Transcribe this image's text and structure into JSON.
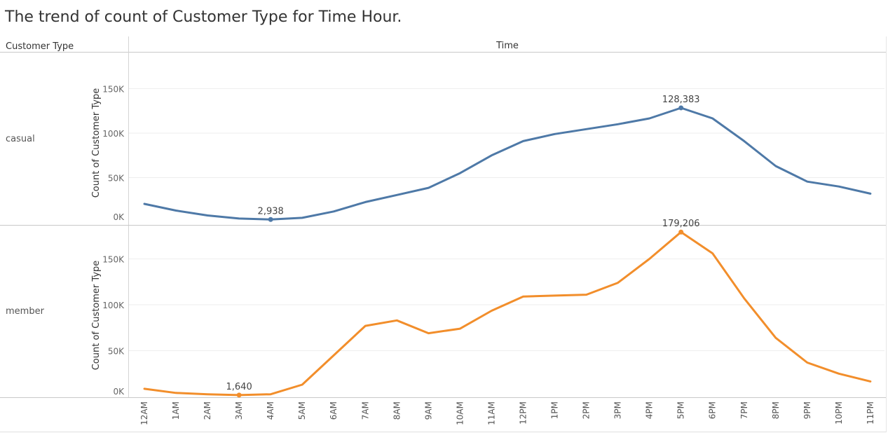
{
  "title": "The trend of count of Customer Type for Time Hour.",
  "row_header": "Customer Type",
  "column_header": "Time",
  "chart_data": {
    "type": "line",
    "title": "The trend of count of Customer Type for Time Hour.",
    "xlabel": "Time",
    "ylabel": "Count of Customer Type",
    "categories": [
      "12AM",
      "1AM",
      "2AM",
      "3AM",
      "4AM",
      "5AM",
      "6AM",
      "7AM",
      "8AM",
      "9AM",
      "10AM",
      "11AM",
      "12PM",
      "1PM",
      "2PM",
      "3PM",
      "4PM",
      "5PM",
      "6PM",
      "7PM",
      "8PM",
      "9PM",
      "10PM",
      "11PM"
    ],
    "ylim": [
      0,
      150000
    ],
    "yticks": [
      0,
      50000,
      100000,
      150000
    ],
    "ytick_labels": [
      "0K",
      "50K",
      "100K",
      "150K"
    ],
    "grid": true,
    "series": [
      {
        "name": "casual",
        "color": "#4e79a7",
        "values": [
          20500,
          13000,
          7500,
          4000,
          2938,
          4800,
          12000,
          22500,
          30500,
          38500,
          55000,
          75000,
          91000,
          99000,
          104500,
          110000,
          116500,
          128383,
          116500,
          91000,
          63000,
          45500,
          40000,
          32000
        ],
        "labels": [
          {
            "index": 4,
            "text": "2,938"
          },
          {
            "index": 17,
            "text": "128,383"
          }
        ]
      },
      {
        "name": "member",
        "color": "#f28e2b",
        "values": [
          8500,
          4000,
          2500,
          1640,
          2500,
          13000,
          45000,
          77000,
          83000,
          69000,
          74000,
          93500,
          109000,
          110000,
          111000,
          124000,
          150000,
          179206,
          156000,
          107000,
          64000,
          37000,
          25000,
          16500
        ],
        "labels": [
          {
            "index": 3,
            "text": "1,640"
          },
          {
            "index": 17,
            "text": "179,206"
          }
        ]
      }
    ]
  }
}
